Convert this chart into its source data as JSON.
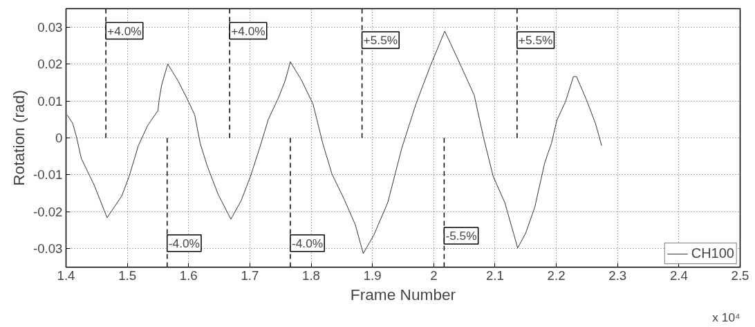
{
  "chart_data": {
    "type": "line",
    "xlabel": "Frame Number",
    "ylabel": "Rotation (rad)",
    "xlim": [
      1.4,
      2.5
    ],
    "ylim": [
      -0.035,
      0.035
    ],
    "xticks": [
      1.4,
      1.5,
      1.6,
      1.7,
      1.8,
      1.9,
      2,
      2.1,
      2.2,
      2.3,
      2.4,
      2.5
    ],
    "yticks": [
      -0.03,
      -0.02,
      -0.01,
      0,
      0.01,
      0.02,
      0.03
    ],
    "grid": true,
    "legend": "bottom right",
    "line_style": "solid",
    "series": [
      {
        "name": "CH100",
        "color": "#333333",
        "x": [
          1.402,
          1.411,
          1.417,
          1.425,
          1.446,
          1.467,
          1.491,
          1.503,
          1.518,
          1.533,
          1.55,
          1.552,
          1.556,
          1.566,
          1.583,
          1.6,
          1.61,
          1.619,
          1.63,
          1.648,
          1.669,
          1.686,
          1.701,
          1.716,
          1.73,
          1.747,
          1.758,
          1.766,
          1.784,
          1.803,
          1.819,
          1.834,
          1.853,
          1.872,
          1.885,
          1.902,
          1.925,
          1.948,
          1.971,
          1.994,
          2.018,
          2.04,
          2.066,
          2.081,
          2.097,
          2.116,
          2.137,
          2.15,
          2.165,
          2.181,
          2.192,
          2.201,
          2.215,
          2.228,
          2.233,
          2.249,
          2.264,
          2.274
        ],
        "values": [
          0.0062,
          0.0039,
          0.0003,
          -0.0056,
          -0.0128,
          -0.0216,
          -0.0157,
          -0.0104,
          -0.0021,
          0.0033,
          0.0074,
          0.0104,
          0.0143,
          0.02,
          0.0154,
          0.0098,
          0.0062,
          -0.0015,
          -0.0074,
          -0.0152,
          -0.022,
          -0.0169,
          -0.0104,
          -0.0027,
          0.005,
          0.011,
          0.0157,
          0.0206,
          0.0157,
          0.0092,
          -0.0015,
          -0.0098,
          -0.0163,
          -0.0235,
          -0.0313,
          -0.0264,
          -0.0175,
          -0.0027,
          0.0092,
          0.0193,
          0.0289,
          0.0211,
          0.0116,
          0.0003,
          -0.0104,
          -0.0175,
          -0.0298,
          -0.0258,
          -0.0187,
          -0.0068,
          -0.0015,
          0.0048,
          0.0098,
          0.0166,
          0.0166,
          0.0104,
          0.0039,
          -0.0021
        ]
      }
    ],
    "ref_lines": [
      {
        "axis": "x",
        "value": 1.465,
        "line_style": "dashed",
        "color": "#000000"
      },
      {
        "axis": "x",
        "value": 1.565,
        "line_style": "dashed",
        "color": "#000000"
      },
      {
        "axis": "x",
        "value": 1.667,
        "line_style": "dashed",
        "color": "#000000"
      },
      {
        "axis": "x",
        "value": 1.766,
        "line_style": "dashed",
        "color": "#000000"
      },
      {
        "axis": "x",
        "value": 1.883,
        "line_style": "dashed",
        "color": "#000000"
      },
      {
        "axis": "x",
        "value": 2.017,
        "line_style": "dashed",
        "color": "#000000"
      },
      {
        "axis": "x",
        "value": 2.136,
        "line_style": "dashed",
        "color": "#000000"
      }
    ],
    "annotations": [
      {
        "text": "+4.0%",
        "x": 1.465,
        "y": 0.029
      },
      {
        "text": "-4.0%",
        "x": 1.565,
        "y": -0.0285
      },
      {
        "text": "+4.0%",
        "x": 1.667,
        "y": 0.029
      },
      {
        "text": "-4.0%",
        "x": 1.766,
        "y": -0.0285
      },
      {
        "text": "+5.5%",
        "x": 1.883,
        "y": 0.0265
      },
      {
        "text": "-5.5%",
        "x": 2.017,
        "y": -0.0265
      },
      {
        "text": "+5.5%",
        "x": 2.136,
        "y": 0.0265
      },
      "x 10⁴"
    ]
  }
}
